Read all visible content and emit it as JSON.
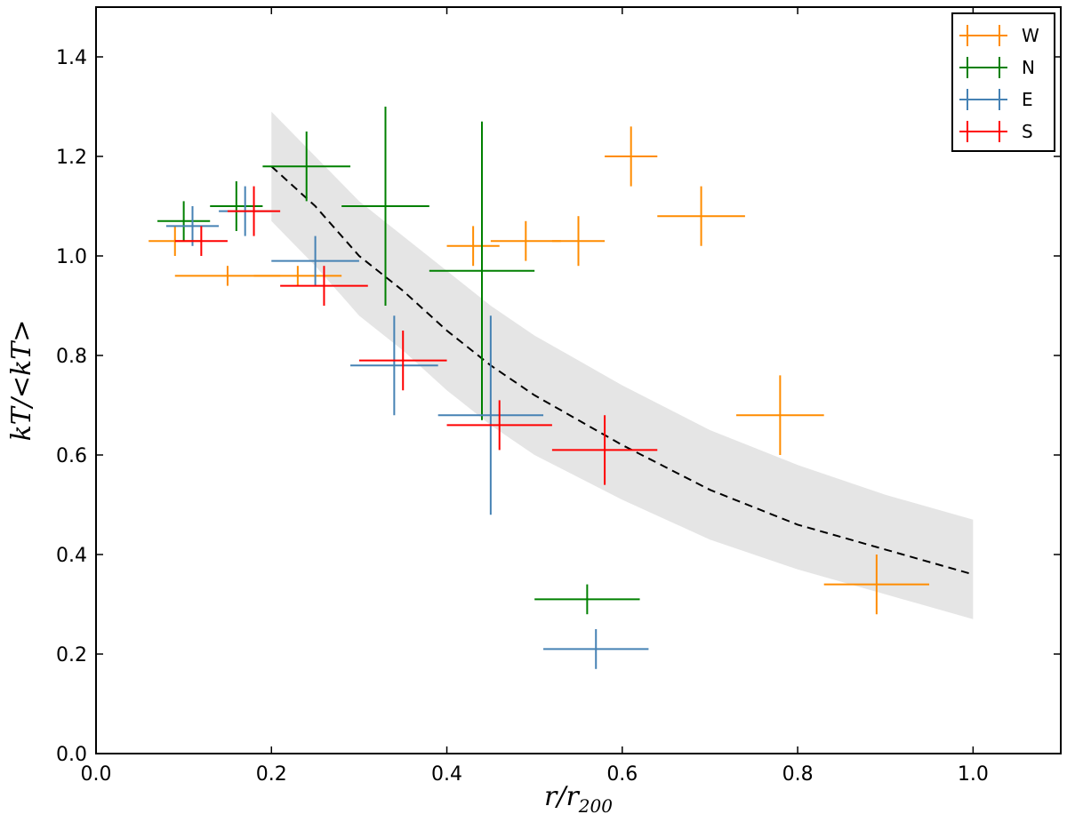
{
  "chart_data": {
    "type": "scatter",
    "title": "",
    "xlabel": "r/r200",
    "xlabel_main": "r/r",
    "xlabel_sub": "200",
    "ylabel": "kT/<kT>",
    "xlim": [
      0.0,
      1.1
    ],
    "ylim": [
      0.0,
      1.5
    ],
    "x_ticks": [
      0.0,
      0.2,
      0.4,
      0.6,
      0.8,
      1.0
    ],
    "x_tick_labels": [
      "0.0",
      "0.2",
      "0.4",
      "0.6",
      "0.8",
      "1.0"
    ],
    "y_ticks": [
      0.0,
      0.2,
      0.4,
      0.6,
      0.8,
      1.0,
      1.2,
      1.4
    ],
    "y_tick_labels": [
      "0.0",
      "0.2",
      "0.4",
      "0.6",
      "0.8",
      "1.0",
      "1.2",
      "1.4"
    ],
    "legend_position": "top-right",
    "grid": false,
    "series": [
      {
        "name": "W",
        "color": "#ff8c00",
        "points": [
          {
            "x": 0.09,
            "y": 1.03,
            "xerr": 0.03,
            "yerr": 0.03
          },
          {
            "x": 0.15,
            "y": 0.96,
            "xerr": 0.06,
            "yerr": 0.02
          },
          {
            "x": 0.23,
            "y": 0.96,
            "xerr": 0.05,
            "yerr": 0.02
          },
          {
            "x": 0.43,
            "y": 1.02,
            "xerr": 0.03,
            "yerr": 0.04
          },
          {
            "x": 0.49,
            "y": 1.03,
            "xerr": 0.04,
            "yerr": 0.04
          },
          {
            "x": 0.55,
            "y": 1.03,
            "xerr": 0.03,
            "yerr": 0.05
          },
          {
            "x": 0.61,
            "y": 1.2,
            "xerr": 0.03,
            "yerr": 0.06
          },
          {
            "x": 0.69,
            "y": 1.08,
            "xerr": 0.05,
            "yerr": 0.06
          },
          {
            "x": 0.78,
            "y": 0.68,
            "xerr": 0.05,
            "yerr": 0.08
          },
          {
            "x": 0.89,
            "y": 0.34,
            "xerr": 0.06,
            "yerr": 0.06
          }
        ]
      },
      {
        "name": "N",
        "color": "#008000",
        "points": [
          {
            "x": 0.1,
            "y": 1.07,
            "xerr": 0.03,
            "yerr": 0.04
          },
          {
            "x": 0.16,
            "y": 1.1,
            "xerr": 0.03,
            "yerr": 0.05
          },
          {
            "x": 0.24,
            "y": 1.18,
            "xerr": 0.05,
            "yerr": 0.07
          },
          {
            "x": 0.33,
            "y": 1.1,
            "xerr": 0.05,
            "yerr": 0.2
          },
          {
            "x": 0.44,
            "y": 0.97,
            "xerr": 0.06,
            "yerr": 0.3
          },
          {
            "x": 0.56,
            "y": 0.31,
            "xerr": 0.06,
            "yerr": 0.03
          }
        ]
      },
      {
        "name": "E",
        "color": "#4682b4",
        "points": [
          {
            "x": 0.11,
            "y": 1.06,
            "xerr": 0.03,
            "yerr": 0.04
          },
          {
            "x": 0.17,
            "y": 1.09,
            "xerr": 0.03,
            "yerr": 0.05
          },
          {
            "x": 0.25,
            "y": 0.99,
            "xerr": 0.05,
            "yerr": 0.05
          },
          {
            "x": 0.34,
            "y": 0.78,
            "xerr": 0.05,
            "yerr": 0.1
          },
          {
            "x": 0.45,
            "y": 0.68,
            "xerr": 0.06,
            "yerr": 0.2
          },
          {
            "x": 0.57,
            "y": 0.21,
            "xerr": 0.06,
            "yerr": 0.04
          }
        ]
      },
      {
        "name": "S",
        "color": "#ff0000",
        "points": [
          {
            "x": 0.12,
            "y": 1.03,
            "xerr": 0.03,
            "yerr": 0.03
          },
          {
            "x": 0.18,
            "y": 1.09,
            "xerr": 0.03,
            "yerr": 0.05
          },
          {
            "x": 0.26,
            "y": 0.94,
            "xerr": 0.05,
            "yerr": 0.04
          },
          {
            "x": 0.35,
            "y": 0.79,
            "xerr": 0.05,
            "yerr": 0.06
          },
          {
            "x": 0.46,
            "y": 0.66,
            "xerr": 0.06,
            "yerr": 0.05
          },
          {
            "x": 0.58,
            "y": 0.61,
            "xerr": 0.06,
            "yerr": 0.07
          }
        ]
      }
    ],
    "model_curve": {
      "style": "dashed",
      "color": "#000000",
      "x": [
        0.2,
        0.25,
        0.3,
        0.35,
        0.4,
        0.45,
        0.5,
        0.6,
        0.7,
        0.8,
        0.9,
        1.0
      ],
      "y": [
        1.18,
        1.1,
        1.0,
        0.93,
        0.85,
        0.78,
        0.72,
        0.62,
        0.53,
        0.46,
        0.41,
        0.36
      ]
    },
    "model_band": {
      "color": "#e5e5e5",
      "x": [
        0.2,
        0.25,
        0.3,
        0.35,
        0.4,
        0.45,
        0.5,
        0.6,
        0.7,
        0.8,
        0.9,
        1.0
      ],
      "upper": [
        1.29,
        1.2,
        1.11,
        1.04,
        0.97,
        0.9,
        0.84,
        0.74,
        0.65,
        0.58,
        0.52,
        0.47
      ],
      "lower": [
        1.07,
        0.98,
        0.88,
        0.81,
        0.73,
        0.66,
        0.6,
        0.51,
        0.43,
        0.37,
        0.32,
        0.27
      ]
    }
  }
}
